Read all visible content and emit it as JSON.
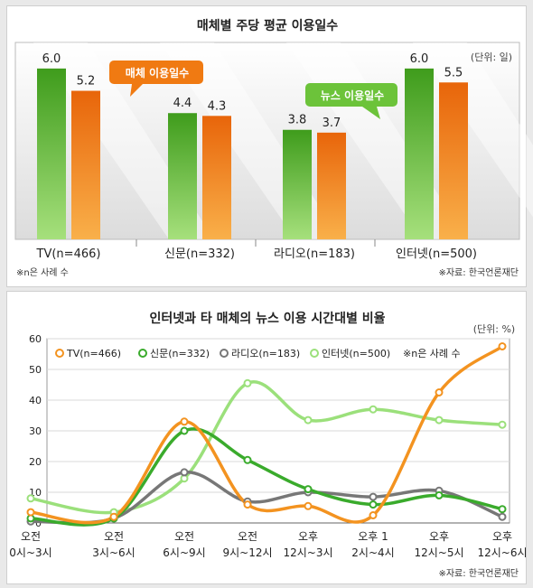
{
  "chart_data": [
    {
      "type": "bar",
      "title": "매체별 주당 평균 이용일수",
      "unit_label": "(단위: 일)",
      "categories": [
        "TV(n=466)",
        "신문(n=332)",
        "라디오(n=183)",
        "인터넷(n=500)"
      ],
      "series": [
        {
          "name": "뉴스 이용일수",
          "values": [
            6.0,
            4.4,
            3.8,
            6.0
          ]
        },
        {
          "name": "매체 이용일수",
          "values": [
            5.2,
            4.3,
            3.7,
            5.5
          ]
        }
      ],
      "value_labels": [
        [
          "6.0",
          "4.4",
          "3.8",
          "6.0"
        ],
        [
          "5.2",
          "4.3",
          "3.7",
          "5.5"
        ]
      ],
      "ylim": [
        0,
        7
      ],
      "note": "※n은 사례 수",
      "source": "※자료: 한국언론재단",
      "colors": {
        "news": "#5dbb2a",
        "media": "#f07a12"
      }
    },
    {
      "type": "line",
      "title": "인터넷과 타 매체의 뉴스 이용 시간대별 비율",
      "unit_label": "(단위: %)",
      "x_top": [
        "오전",
        "오전",
        "오전",
        "오전",
        "오후",
        "오후 1",
        "오후",
        "오후"
      ],
      "x_bottom": [
        "0시~3시",
        "3시~6시",
        "6시~9시",
        "9시~12시",
        "12시~3시",
        "2시~4시",
        "12시~5시",
        "12시~6시"
      ],
      "yticks": [
        "0",
        "10",
        "20",
        "30",
        "40",
        "50",
        "60"
      ],
      "ylim": [
        0,
        60
      ],
      "grid": true,
      "legend_placement": "top",
      "series": [
        {
          "name": "TV(n=466)",
          "values": [
            3.5,
            2.0,
            33.0,
            6.0,
            5.5,
            2.5,
            42.5,
            57.5
          ],
          "color": "#f39320"
        },
        {
          "name": "신문(n=332)",
          "values": [
            1.5,
            1.5,
            30.0,
            20.5,
            11.0,
            6.0,
            9.0,
            4.5
          ],
          "color": "#3aab2c"
        },
        {
          "name": "라디오(n=183)",
          "values": [
            0.5,
            1.5,
            16.5,
            7.0,
            10.0,
            8.5,
            10.5,
            2.0
          ],
          "color": "#777777"
        },
        {
          "name": "인터넷(n=500)",
          "values": [
            8.0,
            3.5,
            14.5,
            45.5,
            33.5,
            37.0,
            33.5,
            32.0
          ],
          "color": "#9be07b"
        }
      ],
      "note": "※n은 사례 수",
      "source": "※자료: 한국언론재단"
    }
  ]
}
